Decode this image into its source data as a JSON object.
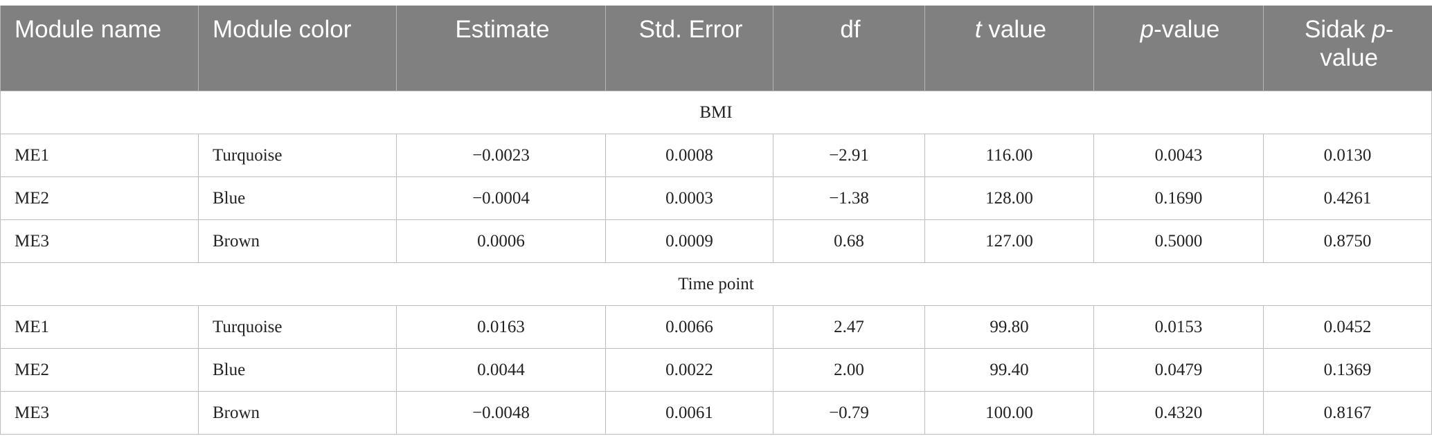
{
  "table": {
    "header": [
      [
        {
          "text": "Module name",
          "italic": false
        }
      ],
      [
        {
          "text": "Module color",
          "italic": false
        }
      ],
      [
        {
          "text": "Estimate",
          "italic": false
        }
      ],
      [
        {
          "text": "Std. Error",
          "italic": false
        }
      ],
      [
        {
          "text": "df",
          "italic": false
        }
      ],
      [
        {
          "text": "t",
          "italic": true
        },
        {
          "text": " value",
          "italic": false
        }
      ],
      [
        {
          "text": "p",
          "italic": true
        },
        {
          "text": "-value",
          "italic": false
        }
      ],
      [
        {
          "text": "Sidak ",
          "italic": false
        },
        {
          "text": "p",
          "italic": true
        },
        {
          "text": "-value",
          "italic": false
        }
      ]
    ],
    "groups": [
      {
        "label": "BMI",
        "rows": [
          [
            "ME1",
            "Turquoise",
            "−0.0023",
            "0.0008",
            "−2.91",
            "116.00",
            "0.0043",
            "0.0130"
          ],
          [
            "ME2",
            "Blue",
            "−0.0004",
            "0.0003",
            "−1.38",
            "128.00",
            "0.1690",
            "0.4261"
          ],
          [
            "ME3",
            "Brown",
            "0.0006",
            "0.0009",
            "0.68",
            "127.00",
            "0.5000",
            "0.8750"
          ]
        ]
      },
      {
        "label": "Time point",
        "rows": [
          [
            "ME1",
            "Turquoise",
            "0.0163",
            "0.0066",
            "2.47",
            "99.80",
            "0.0153",
            "0.0452"
          ],
          [
            "ME2",
            "Blue",
            "0.0044",
            "0.0022",
            "2.00",
            "99.40",
            "0.0479",
            "0.1369"
          ],
          [
            "ME3",
            "Brown",
            "−0.0048",
            "0.0061",
            "−0.79",
            "100.00",
            "0.4320",
            "0.8167"
          ]
        ]
      }
    ]
  }
}
